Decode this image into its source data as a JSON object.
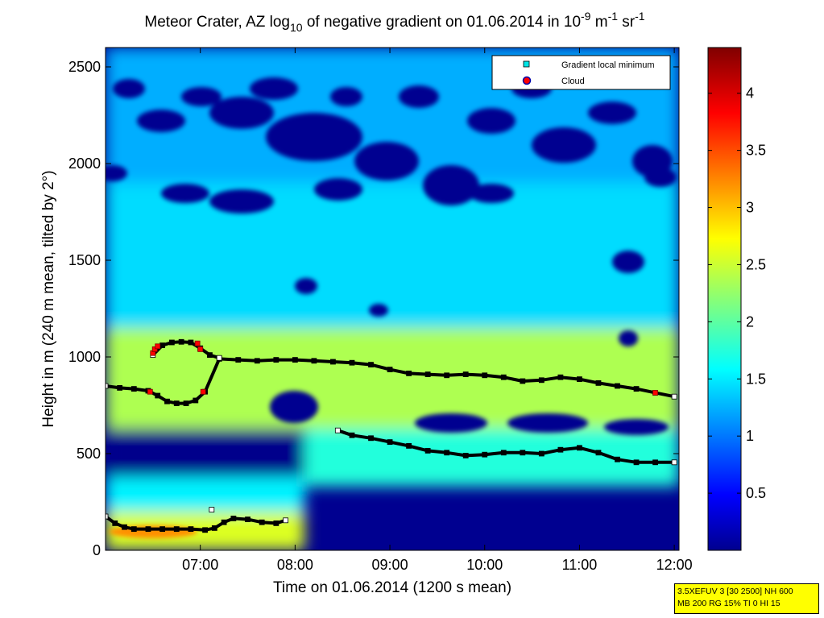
{
  "chart_data": {
    "type": "heatmap",
    "title": {
      "part1": "Meteor Crater, AZ log",
      "sub": "10",
      "part2": " of negative gradient on 01.06.2014 in 10",
      "sup1": "-9",
      "part3": " m",
      "sup2": "-1",
      "part4": " sr",
      "sup3": "-1"
    },
    "xlabel": "Time on 01.06.2014 (1200 s mean)",
    "ylabel": "Height in m (240 m mean, tilted by 2°)",
    "xlim": [
      6.0,
      12.05
    ],
    "ylim": [
      0,
      2600
    ],
    "x_ticks": [
      {
        "value": 7,
        "label": "07:00"
      },
      {
        "value": 8,
        "label": "08:00"
      },
      {
        "value": 9,
        "label": "09:00"
      },
      {
        "value": 10,
        "label": "10:00"
      },
      {
        "value": 11,
        "label": "11:00"
      },
      {
        "value": 12,
        "label": "12:00"
      }
    ],
    "y_ticks": [
      0,
      500,
      1000,
      1500,
      2000,
      2500
    ],
    "colorbar": {
      "min": 0,
      "max": 4.4,
      "ticks": [
        0.5,
        1,
        1.5,
        2,
        2.5,
        3,
        3.5,
        4
      ],
      "colormap": "jet"
    },
    "legend": {
      "position": "top-right",
      "entries": [
        {
          "label": "Gradient local minimum",
          "marker": "square",
          "color": "#00e5e5"
        },
        {
          "label": "Cloud",
          "marker": "circle",
          "color": "#ff0000"
        }
      ]
    },
    "field_bands": [
      {
        "y0": 0,
        "y1": 200,
        "value": 2.6,
        "x0": 6.0,
        "x1": 8.1
      },
      {
        "y0": 200,
        "y1": 380,
        "value": 1.6,
        "x0": 6.0,
        "x1": 8.1
      },
      {
        "y0": 380,
        "y1": 630,
        "value": 0.05,
        "x0": 6.0,
        "x1": 8.1
      },
      {
        "y0": 330,
        "y1": 630,
        "value": 1.8,
        "x0": 8.1,
        "x1": 12.05
      },
      {
        "y0": 630,
        "y1": 1150,
        "value": 2.4,
        "x0": 6.0,
        "x1": 12.05
      },
      {
        "y0": 1150,
        "y1": 1900,
        "value": 1.5,
        "x0": 6.0,
        "x1": 12.05
      },
      {
        "y0": 1900,
        "y1": 2600,
        "value": 1.3,
        "x0": 6.0,
        "x1": 12.05
      }
    ],
    "series": [
      {
        "name": "Gradient local minimum",
        "x": [
          6.0,
          6.15,
          6.3,
          6.45,
          6.55,
          6.65,
          6.75,
          6.85,
          6.95,
          7.05,
          7.2,
          7.4,
          7.6,
          7.8,
          8.0,
          8.2,
          8.4,
          8.6,
          8.8,
          9.0,
          9.2,
          9.4,
          9.6,
          9.8,
          10.0,
          10.2,
          10.4,
          10.6,
          10.8,
          11.0,
          11.2,
          11.4,
          11.6,
          11.8,
          12.0
        ],
        "y": [
          850,
          840,
          835,
          825,
          800,
          770,
          760,
          760,
          775,
          820,
          990,
          985,
          980,
          985,
          985,
          980,
          975,
          970,
          960,
          935,
          915,
          910,
          905,
          910,
          905,
          895,
          875,
          880,
          895,
          885,
          865,
          850,
          835,
          815,
          795
        ]
      },
      {
        "name": "Gradient local minimum",
        "x": [
          6.5,
          6.6,
          6.7,
          6.8,
          6.9,
          7.0,
          7.1,
          7.2
        ],
        "y": [
          1010,
          1060,
          1075,
          1078,
          1075,
          1045,
          1010,
          995
        ]
      },
      {
        "name": "Gradient local minimum",
        "x": [
          8.45,
          8.6,
          8.8,
          9.0,
          9.2,
          9.4,
          9.6,
          9.8,
          10.0,
          10.2,
          10.4,
          10.6,
          10.8,
          11.0,
          11.2,
          11.4,
          11.6,
          11.8,
          12.0
        ],
        "y": [
          620,
          595,
          580,
          560,
          540,
          515,
          505,
          490,
          495,
          505,
          505,
          500,
          520,
          530,
          505,
          470,
          455,
          455,
          455
        ]
      },
      {
        "name": "Gradient local minimum",
        "x": [
          6.0,
          6.1,
          6.2,
          6.3,
          6.45,
          6.6,
          6.75,
          6.9,
          7.05,
          7.15,
          7.25,
          7.35,
          7.5,
          7.65,
          7.8,
          7.9
        ],
        "y": [
          175,
          140,
          120,
          110,
          110,
          110,
          110,
          110,
          105,
          115,
          145,
          165,
          160,
          145,
          140,
          155
        ]
      },
      {
        "name": "Gradient local minimum",
        "x": [
          7.12
        ],
        "y": [
          210
        ]
      }
    ],
    "cloud_points": {
      "x": [
        6.5,
        6.52,
        6.55,
        6.97,
        7.0,
        6.47,
        7.03,
        11.8
      ],
      "y": [
        1020,
        1040,
        1055,
        1070,
        1040,
        820,
        820,
        815
      ]
    }
  },
  "info_box": {
    "line1": "3.5XEFUV 3 [30 2500] NH 600",
    "line2": "MB 200 RG 15% TI 0 HI 15"
  }
}
